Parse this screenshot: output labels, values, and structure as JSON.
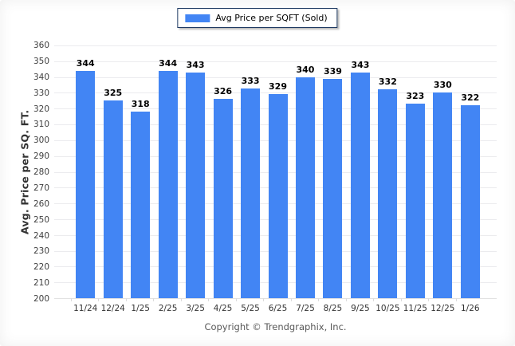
{
  "legend": {
    "label": "Avg Price per SQFT (Sold)"
  },
  "footer": {
    "copyright": "Copyright © Trendgraphix, Inc."
  },
  "colors": {
    "bar": "#4285F4",
    "legend_border": "#1f3a63",
    "gridline": "#ebebee"
  },
  "chart_data": {
    "type": "bar",
    "title": "",
    "series_name": "Avg Price per SQFT (Sold)",
    "categories": [
      "11/24",
      "12/24",
      "1/25",
      "2/25",
      "3/25",
      "4/25",
      "5/25",
      "6/25",
      "7/25",
      "8/25",
      "9/25",
      "10/25",
      "11/25",
      "12/25",
      "1/26"
    ],
    "values": [
      344,
      325,
      318,
      344,
      343,
      326,
      333,
      329,
      340,
      339,
      343,
      332,
      323,
      330,
      322
    ],
    "xlabel": "",
    "ylabel": "Avg. Price per SQ. FT.",
    "ylim": [
      200,
      360
    ],
    "ytick_step": 10,
    "yticks": [
      360,
      350,
      340,
      330,
      320,
      310,
      300,
      290,
      280,
      270,
      260,
      250,
      240,
      230,
      220,
      210,
      200
    ],
    "grid": "horizontal",
    "legend_position": "top-center",
    "bar_color": "#4285F4"
  }
}
